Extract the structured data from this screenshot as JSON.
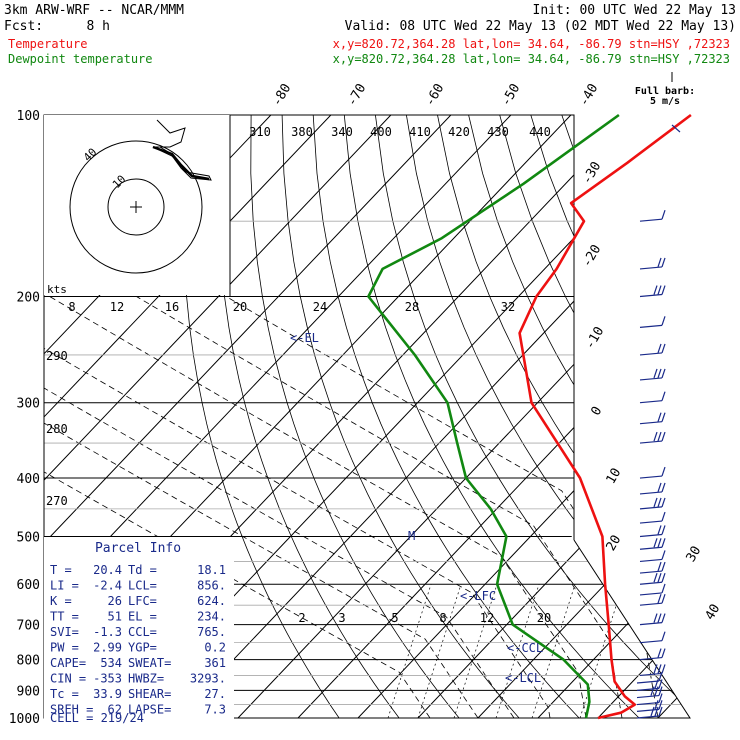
{
  "header": {
    "model": "3km ARW-WRF -- NCAR/MMM",
    "init": "Init: 00 UTC Wed 22 May 13",
    "fcst_label": "Fcst:",
    "fcst_value": "8 h",
    "valid": "Valid: 08 UTC Wed 22 May 13 (02 MDT Wed 22 May 13)",
    "temp_label": "Temperature",
    "temp_info": "x,y=820.72,364.28   lat,lon= 34.64, -86.79   stn=HSY ,72323",
    "dew_label": "Dewpoint temperature",
    "dew_info": "x,y=820.72,364.28   lat,lon= 34.64, -86.79   stn=HSY ,72323"
  },
  "colors": {
    "temperature": "#ee1111",
    "dewpoint": "#118811",
    "parcel_text": "#1a2a8a",
    "axes": "#000000",
    "guides": "#888888"
  },
  "chart_data": {
    "type": "line",
    "pressure_ticks": [
      "100",
      "200",
      "300",
      "400",
      "500",
      "600",
      "700",
      "800",
      "900",
      "1000"
    ],
    "temperature_ticks_top": [
      "-80",
      "-70",
      "-60",
      "-50",
      "-40"
    ],
    "temperature_ticks_right": [
      "-30",
      "-20",
      "-10",
      "0",
      "10",
      "20",
      "30",
      "40"
    ],
    "theta_labels": [
      "310",
      "380",
      "340",
      "400",
      "410",
      "420",
      "430",
      "440"
    ],
    "theta_labels_left": [
      "290",
      "280",
      "270"
    ],
    "mixing_ratio_labels": [
      "2",
      "3",
      "5",
      "8",
      "12",
      "20"
    ],
    "hodograph_speed_labels": [
      "8",
      "12",
      "16",
      "20",
      "24",
      "28",
      "32"
    ],
    "hodograph_units": "kts",
    "hodograph_ring_labels": [
      "40",
      "10"
    ],
    "wind_key_title": "Full barb:",
    "wind_key_units": "5 m/s",
    "annotations": [
      "<-EL",
      "<-LFC",
      "<-CCL",
      "<-LCL",
      "M"
    ],
    "series": [
      {
        "name": "Temperature",
        "points": [
          {
            "p": 100,
            "t": -60
          },
          {
            "p": 120,
            "t": -63
          },
          {
            "p": 140,
            "t": -66
          },
          {
            "p": 150,
            "t": -61
          },
          {
            "p": 180,
            "t": -58
          },
          {
            "p": 200,
            "t": -57
          },
          {
            "p": 230,
            "t": -54
          },
          {
            "p": 260,
            "t": -48
          },
          {
            "p": 300,
            "t": -41
          },
          {
            "p": 400,
            "t": -21
          },
          {
            "p": 500,
            "t": -8
          },
          {
            "p": 600,
            "t": 0
          },
          {
            "p": 700,
            "t": 7
          },
          {
            "p": 800,
            "t": 13
          },
          {
            "p": 870,
            "t": 17
          },
          {
            "p": 920,
            "t": 21
          },
          {
            "p": 950,
            "t": 24
          },
          {
            "p": 980,
            "t": 23
          },
          {
            "p": 1000,
            "t": 20
          }
        ]
      },
      {
        "name": "Dewpoint temperature",
        "points": [
          {
            "p": 100,
            "t": -72
          },
          {
            "p": 130,
            "t": -77
          },
          {
            "p": 160,
            "t": -82
          },
          {
            "p": 180,
            "t": -87
          },
          {
            "p": 200,
            "t": -85
          },
          {
            "p": 250,
            "t": -68
          },
          {
            "p": 300,
            "t": -55
          },
          {
            "p": 350,
            "t": -47
          },
          {
            "p": 400,
            "t": -40
          },
          {
            "p": 450,
            "t": -31
          },
          {
            "p": 500,
            "t": -24
          },
          {
            "p": 600,
            "t": -18
          },
          {
            "p": 700,
            "t": -9
          },
          {
            "p": 800,
            "t": 5
          },
          {
            "p": 880,
            "t": 13
          },
          {
            "p": 940,
            "t": 16
          },
          {
            "p": 1000,
            "t": 18
          }
        ]
      }
    ]
  },
  "parcel_info": {
    "title": "Parcel Info",
    "rows": [
      [
        "T  =",
        "20.4",
        "Td =",
        "18.1"
      ],
      [
        "LI =",
        "-2.4",
        "LCL=",
        "856."
      ],
      [
        "K  =",
        "26",
        "LFC=",
        "624."
      ],
      [
        "TT =",
        "51",
        "EL =",
        "234."
      ],
      [
        "SVI=",
        "-1.3",
        "CCL=",
        "765."
      ],
      [
        "PW =",
        "2.99",
        "YGP=",
        "0.2"
      ],
      [
        "CAPE=",
        "534",
        "SWEAT=",
        "361"
      ],
      [
        "CIN =",
        "-353",
        "HWBZ=",
        "3293."
      ],
      [
        "Tc =",
        "33.9",
        "SHEAR=",
        "27."
      ],
      [
        "SREH =",
        "62",
        "LAPSE=",
        "7.3"
      ]
    ],
    "cell": "CELL = 219/24"
  }
}
